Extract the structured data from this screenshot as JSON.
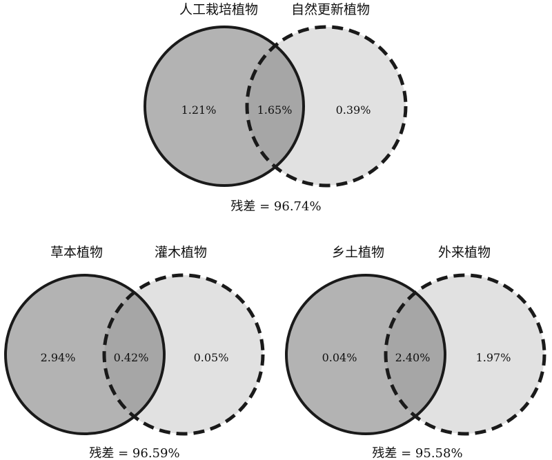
{
  "colors": {
    "left_fill": "#b3b3b3",
    "right_fill": "#e1e1e1",
    "overlap_fill": "#a6a6a6",
    "stroke": "#1a1a1a"
  },
  "venns": [
    {
      "left_title": "人工栽培植物",
      "right_title": "自然更新植物",
      "left_only": "1.21%",
      "overlap": "1.65%",
      "right_only": "0.39%",
      "residual": "残差 = 96.74%"
    },
    {
      "left_title": "草本植物",
      "right_title": "灌木植物",
      "left_only": "2.94%",
      "overlap": "0.42%",
      "right_only": "0.05%",
      "residual": "残差 = 96.59%"
    },
    {
      "left_title": "乡土植物",
      "right_title": "外来植物",
      "left_only": "0.04%",
      "overlap": "2.40%",
      "right_only": "1.97%",
      "residual": "残差 = 95.58%"
    }
  ]
}
